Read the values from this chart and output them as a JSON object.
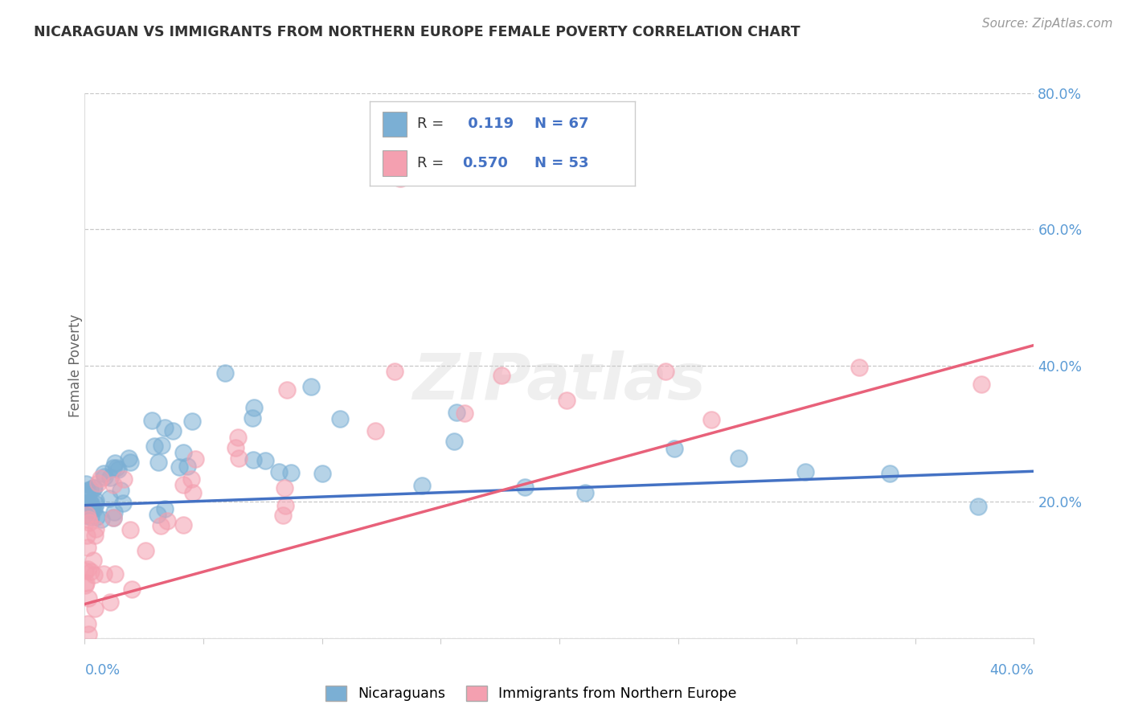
{
  "title": "NICARAGUAN VS IMMIGRANTS FROM NORTHERN EUROPE FEMALE POVERTY CORRELATION CHART",
  "source": "Source: ZipAtlas.com",
  "ylabel": "Female Poverty",
  "series": [
    {
      "name": "Nicaraguans",
      "color": "#7BAFD4",
      "edge_color": "#7BAFD4",
      "R": 0.119,
      "N": 67
    },
    {
      "name": "Immigrants from Northern Europe",
      "color": "#F4A0B0",
      "edge_color": "#F4A0B0",
      "R": 0.57,
      "N": 53
    }
  ],
  "xlim": [
    0.0,
    0.4
  ],
  "ylim": [
    0.0,
    0.8
  ],
  "ytick_values": [
    0.0,
    0.2,
    0.4,
    0.6,
    0.8
  ],
  "ytick_labels": [
    "",
    "20.0%",
    "40.0%",
    "60.0%",
    "80.0%"
  ],
  "grid_color": "#CCCCCC",
  "background_color": "#FFFFFF",
  "title_color": "#333333",
  "axis_label_color": "#5B9BD5",
  "watermark_text": "ZIPatlas",
  "legend_text_color": "#4472C4",
  "legend_R_label": "R = ",
  "legend_N_label": "N = "
}
